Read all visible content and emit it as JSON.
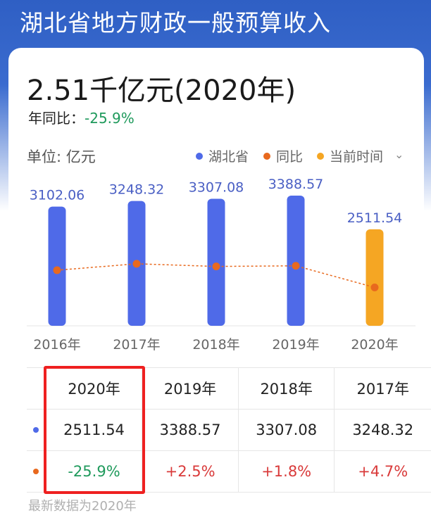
{
  "page": {
    "title": "湖北省地方财政一般预算收入",
    "big_value": "2.51千亿元(2020年)",
    "yoy_label": "年同比：",
    "yoy_value": "-25.9%",
    "unit": "单位: 亿元",
    "footnote": "最新数据为2020年"
  },
  "legend": [
    {
      "label": "湖北省",
      "color": "#4f6ae8"
    },
    {
      "label": "同比",
      "color": "#e8691e"
    },
    {
      "label": "当前时间",
      "color": "#f5a623"
    }
  ],
  "chart_data": {
    "type": "bar",
    "categories": [
      "2016年",
      "2017年",
      "2018年",
      "2019年",
      "2020年"
    ],
    "series": [
      {
        "name": "湖北省",
        "values": [
          3102.06,
          3248.32,
          3307.08,
          3388.57,
          2511.54
        ],
        "color": "#4f6ae8",
        "highlight_color": "#f5a623",
        "highlight_index": 4
      },
      {
        "name": "同比",
        "values": [
          null,
          4.7,
          1.8,
          2.5,
          -25.9
        ],
        "color": "#e8691e",
        "type": "line"
      }
    ],
    "value_labels": [
      "3102.06",
      "3248.32",
      "3307.08",
      "3388.57",
      "2511.54"
    ]
  },
  "table": {
    "headers": [
      "2020年",
      "2019年",
      "2018年",
      "2017年"
    ],
    "values_row": [
      "2511.54",
      "3388.57",
      "3307.08",
      "3248.32"
    ],
    "yoy_row": [
      "-25.9%",
      "+2.5%",
      "+1.8%",
      "+4.7%"
    ]
  }
}
